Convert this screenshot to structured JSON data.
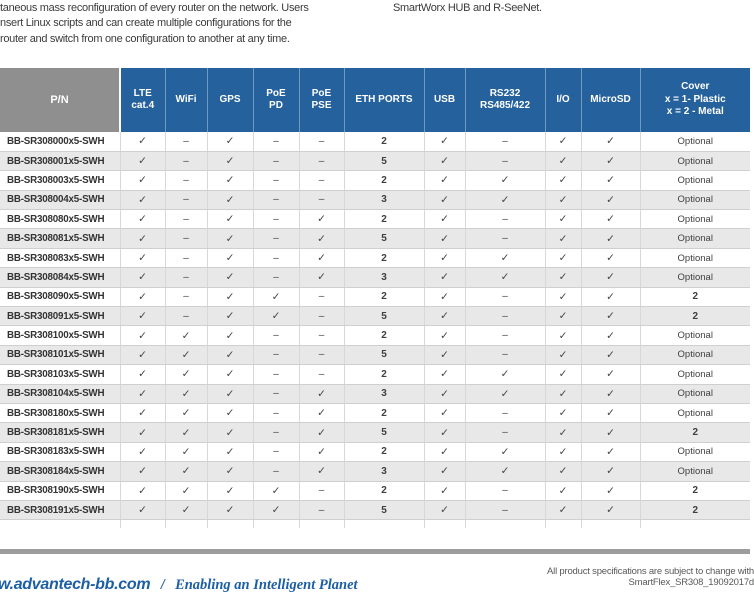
{
  "intro": {
    "left_lines": [
      "taneous mass reconfiguration of every router on the network. Users",
      "nsert Linux scripts and can create multiple configurations for the",
      "router and switch from one configuration to another at any time."
    ],
    "right_line": "SmartWorx HUB and R-SeeNet."
  },
  "table": {
    "columns": [
      "P/N",
      "LTE\ncat.4",
      "WiFi",
      "GPS",
      "PoE\nPD",
      "PoE\nPSE",
      "ETH PORTS",
      "USB",
      "RS232\nRS485/422",
      "I/O",
      "MicroSD",
      "Cover\nx = 1- Plastic\nx = 2 - Metal"
    ],
    "rows": [
      [
        "BB-SR308000x5-SWH",
        "✓",
        "–",
        "✓",
        "–",
        "–",
        "2",
        "✓",
        "–",
        "✓",
        "✓",
        "Optional"
      ],
      [
        "BB-SR308001x5-SWH",
        "✓",
        "–",
        "✓",
        "–",
        "–",
        "5",
        "✓",
        "–",
        "✓",
        "✓",
        "Optional"
      ],
      [
        "BB-SR308003x5-SWH",
        "✓",
        "–",
        "✓",
        "–",
        "–",
        "2",
        "✓",
        "✓",
        "✓",
        "✓",
        "Optional"
      ],
      [
        "BB-SR308004x5-SWH",
        "✓",
        "–",
        "✓",
        "–",
        "–",
        "3",
        "✓",
        "✓",
        "✓",
        "✓",
        "Optional"
      ],
      [
        "BB-SR308080x5-SWH",
        "✓",
        "–",
        "✓",
        "–",
        "✓",
        "2",
        "✓",
        "–",
        "✓",
        "✓",
        "Optional"
      ],
      [
        "BB-SR308081x5-SWH",
        "✓",
        "–",
        "✓",
        "–",
        "✓",
        "5",
        "✓",
        "–",
        "✓",
        "✓",
        "Optional"
      ],
      [
        "BB-SR308083x5-SWH",
        "✓",
        "–",
        "✓",
        "–",
        "✓",
        "2",
        "✓",
        "✓",
        "✓",
        "✓",
        "Optional"
      ],
      [
        "BB-SR308084x5-SWH",
        "✓",
        "–",
        "✓",
        "–",
        "✓",
        "3",
        "✓",
        "✓",
        "✓",
        "✓",
        "Optional"
      ],
      [
        "BB-SR308090x5-SWH",
        "✓",
        "–",
        "✓",
        "✓",
        "–",
        "2",
        "✓",
        "–",
        "✓",
        "✓",
        "2"
      ],
      [
        "BB-SR308091x5-SWH",
        "✓",
        "–",
        "✓",
        "✓",
        "–",
        "5",
        "✓",
        "–",
        "✓",
        "✓",
        "2"
      ],
      [
        "BB-SR308100x5-SWH",
        "✓",
        "✓",
        "✓",
        "–",
        "–",
        "2",
        "✓",
        "–",
        "✓",
        "✓",
        "Optional"
      ],
      [
        "BB-SR308101x5-SWH",
        "✓",
        "✓",
        "✓",
        "–",
        "–",
        "5",
        "✓",
        "–",
        "✓",
        "✓",
        "Optional"
      ],
      [
        "BB-SR308103x5-SWH",
        "✓",
        "✓",
        "✓",
        "–",
        "–",
        "2",
        "✓",
        "✓",
        "✓",
        "✓",
        "Optional"
      ],
      [
        "BB-SR308104x5-SWH",
        "✓",
        "✓",
        "✓",
        "–",
        "✓",
        "3",
        "✓",
        "✓",
        "✓",
        "✓",
        "Optional"
      ],
      [
        "BB-SR308180x5-SWH",
        "✓",
        "✓",
        "✓",
        "–",
        "✓",
        "2",
        "✓",
        "–",
        "✓",
        "✓",
        "Optional"
      ],
      [
        "BB-SR308181x5-SWH",
        "✓",
        "✓",
        "✓",
        "–",
        "✓",
        "5",
        "✓",
        "–",
        "✓",
        "✓",
        "2"
      ],
      [
        "BB-SR308183x5-SWH",
        "✓",
        "✓",
        "✓",
        "–",
        "✓",
        "2",
        "✓",
        "✓",
        "✓",
        "✓",
        "Optional"
      ],
      [
        "BB-SR308184x5-SWH",
        "✓",
        "✓",
        "✓",
        "–",
        "✓",
        "3",
        "✓",
        "✓",
        "✓",
        "✓",
        "Optional"
      ],
      [
        "BB-SR308190x5-SWH",
        "✓",
        "✓",
        "✓",
        "✓",
        "–",
        "2",
        "✓",
        "–",
        "✓",
        "✓",
        "2"
      ],
      [
        "BB-SR308191x5-SWH",
        "✓",
        "✓",
        "✓",
        "✓",
        "–",
        "5",
        "✓",
        "–",
        "✓",
        "✓",
        "2"
      ]
    ]
  },
  "footer": {
    "website": "w.advantech-bb.com",
    "separator": "/",
    "slogan": "Enabling an Intelligent Planet",
    "note_line1": "All product specifications are subject to change with",
    "note_line2": "SmartFlex_SR308_19092017d"
  },
  "colors": {
    "header_blue": "#25619C",
    "header_gray": "#8F8F8F",
    "row_alt": "#E8E8E8",
    "accent_blue": "#1D5FA5",
    "divider_gray": "#9D9D9D"
  }
}
